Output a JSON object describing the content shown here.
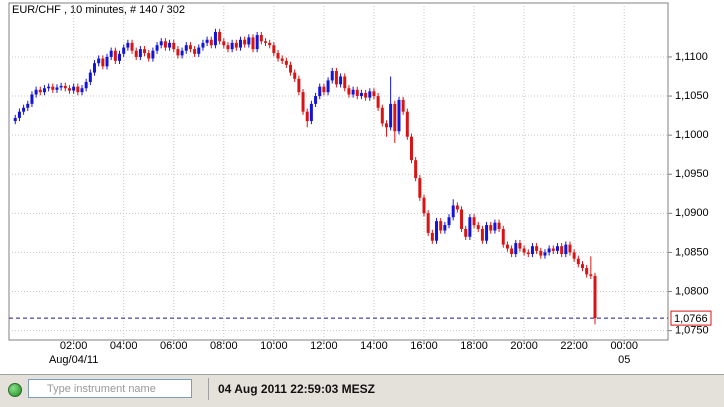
{
  "chart_data": {
    "type": "candlestick",
    "title": "EUR/CHF , 10 minutes, # 140 / 302",
    "up_color": "#1414d8",
    "down_color": "#d81414",
    "grid": true,
    "open": [
      1.1018,
      1.1022,
      1.103,
      1.1035,
      1.104,
      1.1052,
      1.1058,
      1.1055,
      1.106,
      1.1062,
      1.1058,
      1.1061,
      1.1063,
      1.106,
      1.1057,
      1.1062,
      1.1055,
      1.106,
      1.1068,
      1.108,
      1.1092,
      1.1098,
      1.1088,
      1.11,
      1.1108,
      1.1095,
      1.1104,
      1.1112,
      1.1118,
      1.1108,
      1.11,
      1.111,
      1.1105,
      1.1098,
      1.1108,
      1.1115,
      1.112,
      1.1112,
      1.1118,
      1.111,
      1.1102,
      1.1108,
      1.1115,
      1.111,
      1.1104,
      1.1112,
      1.1118,
      1.1122,
      1.1115,
      1.1132,
      1.112,
      1.1115,
      1.111,
      1.1118,
      1.1112,
      1.1122,
      1.1116,
      1.1125,
      1.111,
      1.1128,
      1.112,
      1.1118,
      1.1115,
      1.1105,
      1.1098,
      1.1095,
      1.109,
      1.108,
      1.1072,
      1.1055,
      1.103,
      1.1018,
      1.104,
      1.105,
      1.1062,
      1.1055,
      1.107,
      1.1082,
      1.1065,
      1.1075,
      1.106,
      1.1052,
      1.1058,
      1.105,
      1.1054,
      1.1048,
      1.1056,
      1.105,
      1.1035,
      1.1015,
      1.101,
      1.104,
      1.1005,
      1.1045,
      1.103,
      1.0998,
      1.0968,
      1.0945,
      1.092,
      1.09,
      1.0875,
      1.0865,
      1.089,
      1.0878,
      1.0885,
      1.0895,
      1.091,
      1.0905,
      1.088,
      1.087,
      1.0895,
      1.0885,
      1.088,
      1.0865,
      1.0885,
      1.0878,
      1.0888,
      1.088,
      1.086,
      1.0855,
      1.0848,
      1.0862,
      1.0855,
      1.085,
      1.0848,
      1.0858,
      1.0852,
      1.0846,
      1.085,
      1.0855,
      1.0852,
      1.0858,
      1.0848,
      1.086,
      1.085,
      1.0842,
      1.0835,
      1.083,
      1.0822,
      1.082
    ],
    "high": [
      1.1026,
      1.1034,
      1.1039,
      1.1044,
      1.1056,
      1.1062,
      1.1062,
      1.1064,
      1.1066,
      1.1066,
      1.1065,
      1.1067,
      1.1067,
      1.1064,
      1.1066,
      1.1066,
      1.1064,
      1.1072,
      1.1084,
      1.1096,
      1.1102,
      1.1102,
      1.1104,
      1.1112,
      1.1112,
      1.1108,
      1.1116,
      1.1122,
      1.1122,
      1.1112,
      1.1114,
      1.1114,
      1.1109,
      1.1112,
      1.1119,
      1.1124,
      1.1124,
      1.1122,
      1.1122,
      1.1114,
      1.1112,
      1.1119,
      1.1119,
      1.1114,
      1.1116,
      1.1122,
      1.1126,
      1.1126,
      1.1136,
      1.1136,
      1.1124,
      1.1119,
      1.1122,
      1.1122,
      1.1126,
      1.1126,
      1.1129,
      1.1129,
      1.1132,
      1.1132,
      1.1124,
      1.1122,
      1.1119,
      1.1109,
      1.1102,
      1.1099,
      1.1094,
      1.1084,
      1.1076,
      1.1059,
      1.1034,
      1.1044,
      1.1054,
      1.1066,
      1.1066,
      1.1074,
      1.1086,
      1.1086,
      1.1079,
      1.1079,
      1.1064,
      1.1062,
      1.1062,
      1.1058,
      1.1058,
      1.106,
      1.106,
      1.1054,
      1.1039,
      1.1019,
      1.1075,
      1.1044,
      1.1049,
      1.1049,
      1.1034,
      1.1002,
      1.0972,
      1.0949,
      1.0924,
      1.0904,
      1.0879,
      1.0894,
      1.0894,
      1.0889,
      1.0899,
      1.0918,
      1.0914,
      1.0909,
      1.0884,
      1.0899,
      1.0899,
      1.0889,
      1.0884,
      1.0889,
      1.0889,
      1.0892,
      1.0892,
      1.0884,
      1.0864,
      1.0859,
      1.0866,
      1.0866,
      1.0859,
      1.0854,
      1.0862,
      1.0862,
      1.0856,
      1.0854,
      1.0859,
      1.0859,
      1.0862,
      1.0862,
      1.0864,
      1.0864,
      1.0854,
      1.0846,
      1.0839,
      1.0834,
      1.0845,
      1.0824
    ],
    "low": [
      1.1014,
      1.1018,
      1.1026,
      1.1031,
      1.1036,
      1.1048,
      1.1051,
      1.1051,
      1.1056,
      1.1054,
      1.1054,
      1.1057,
      1.1056,
      1.1053,
      1.1053,
      1.1051,
      1.1051,
      1.1056,
      1.1064,
      1.1076,
      1.1088,
      1.1084,
      1.1084,
      1.1096,
      1.1091,
      1.1091,
      1.11,
      1.1108,
      1.1104,
      1.1096,
      1.1096,
      1.1101,
      1.1094,
      1.1094,
      1.1104,
      1.1111,
      1.1108,
      1.1108,
      1.1106,
      1.1098,
      1.1098,
      1.1104,
      1.1106,
      1.11,
      1.11,
      1.1108,
      1.1114,
      1.1111,
      1.1111,
      1.1116,
      1.1111,
      1.1106,
      1.1106,
      1.1108,
      1.1108,
      1.1112,
      1.1112,
      1.1106,
      1.1106,
      1.1116,
      1.1114,
      1.1111,
      1.1101,
      1.1094,
      1.1091,
      1.1086,
      1.1076,
      1.1068,
      1.1051,
      1.1026,
      1.101,
      1.1014,
      1.1036,
      1.1046,
      1.1051,
      1.1051,
      1.1066,
      1.1061,
      1.1061,
      1.1056,
      1.1048,
      1.1048,
      1.1046,
      1.1046,
      1.1044,
      1.1044,
      1.1046,
      1.1031,
      1.1011,
      1.0998,
      1.1006,
      1.099,
      1.1001,
      1.1026,
      1.0994,
      1.0964,
      1.0941,
      1.0916,
      1.0896,
      1.0871,
      1.0861,
      1.0861,
      1.0874,
      1.0874,
      1.0881,
      1.0891,
      1.0901,
      1.0876,
      1.0866,
      1.0866,
      1.0881,
      1.0876,
      1.0861,
      1.0861,
      1.0874,
      1.0874,
      1.0876,
      1.0856,
      1.0851,
      1.0844,
      1.0844,
      1.0851,
      1.0846,
      1.0844,
      1.0844,
      1.0848,
      1.0842,
      1.0842,
      1.0846,
      1.0848,
      1.0848,
      1.0844,
      1.0844,
      1.0846,
      1.0838,
      1.0831,
      1.0826,
      1.0818,
      1.0816,
      1.0758
    ],
    "close": [
      1.1022,
      1.103,
      1.1035,
      1.104,
      1.1052,
      1.1058,
      1.1055,
      1.106,
      1.1062,
      1.1058,
      1.1061,
      1.1063,
      1.106,
      1.1057,
      1.1062,
      1.1055,
      1.106,
      1.1068,
      1.108,
      1.1092,
      1.1098,
      1.1088,
      1.11,
      1.1108,
      1.1095,
      1.1104,
      1.1112,
      1.1118,
      1.1108,
      1.11,
      1.111,
      1.1105,
      1.1098,
      1.1108,
      1.1115,
      1.112,
      1.1112,
      1.1118,
      1.111,
      1.1102,
      1.1108,
      1.1115,
      1.111,
      1.1104,
      1.1112,
      1.1118,
      1.1122,
      1.1115,
      1.1132,
      1.112,
      1.1115,
      1.111,
      1.1118,
      1.1112,
      1.1122,
      1.1116,
      1.1125,
      1.111,
      1.1128,
      1.112,
      1.1118,
      1.1115,
      1.1105,
      1.1098,
      1.1095,
      1.109,
      1.108,
      1.1072,
      1.1055,
      1.103,
      1.1018,
      1.104,
      1.105,
      1.1062,
      1.1055,
      1.107,
      1.1082,
      1.1065,
      1.1075,
      1.106,
      1.1052,
      1.1058,
      1.105,
      1.1054,
      1.1048,
      1.1056,
      1.105,
      1.1035,
      1.1015,
      1.101,
      1.104,
      1.1005,
      1.1045,
      1.103,
      1.0998,
      1.0968,
      1.0945,
      1.092,
      1.09,
      1.0875,
      1.0865,
      1.089,
      1.0878,
      1.0885,
      1.0895,
      1.091,
      1.0905,
      1.088,
      1.087,
      1.0895,
      1.0885,
      1.088,
      1.0865,
      1.0885,
      1.0878,
      1.0888,
      1.088,
      1.086,
      1.0855,
      1.0848,
      1.0862,
      1.0855,
      1.085,
      1.0848,
      1.0858,
      1.0852,
      1.0846,
      1.085,
      1.0855,
      1.0852,
      1.0858,
      1.0848,
      1.086,
      1.085,
      1.0842,
      1.0835,
      1.083,
      1.0822,
      1.082,
      1.0766
    ],
    "xlim": [
      -1.5,
      156.5
    ],
    "xticks": [
      {
        "value": 14,
        "label": "02:00"
      },
      {
        "value": 26,
        "label": "04:00"
      },
      {
        "value": 38,
        "label": "06:00"
      },
      {
        "value": 50,
        "label": "08:00"
      },
      {
        "value": 62,
        "label": "10:00"
      },
      {
        "value": 74,
        "label": "12:00"
      },
      {
        "value": 86,
        "label": "14:00"
      },
      {
        "value": 98,
        "label": "16:00"
      },
      {
        "value": 110,
        "label": "18:00"
      },
      {
        "value": 122,
        "label": "20:00"
      },
      {
        "value": 134,
        "label": "22:00"
      },
      {
        "value": 146,
        "label": "00:00"
      }
    ],
    "date_labels": [
      {
        "value": 14,
        "label": "Aug/04/11"
      },
      {
        "value": 146,
        "label": "05"
      }
    ],
    "ylim": [
      1.0738,
      1.1169
    ],
    "yticks": [
      {
        "value": 1.075,
        "label": "1,0750"
      },
      {
        "value": 1.08,
        "label": "1,0800"
      },
      {
        "value": 1.085,
        "label": "1,0850"
      },
      {
        "value": 1.09,
        "label": "1,0900"
      },
      {
        "value": 1.095,
        "label": "1,0950"
      },
      {
        "value": 1.1,
        "label": "1,1000"
      },
      {
        "value": 1.105,
        "label": "1,1050"
      },
      {
        "value": 1.11,
        "label": "1,1100"
      }
    ],
    "last_price": {
      "value": 1.0766,
      "label": "1,0766"
    }
  },
  "status_bar": {
    "search_placeholder": "Type instrument name",
    "timestamp": "04 Aug 2011 22:59:03 MESZ"
  }
}
